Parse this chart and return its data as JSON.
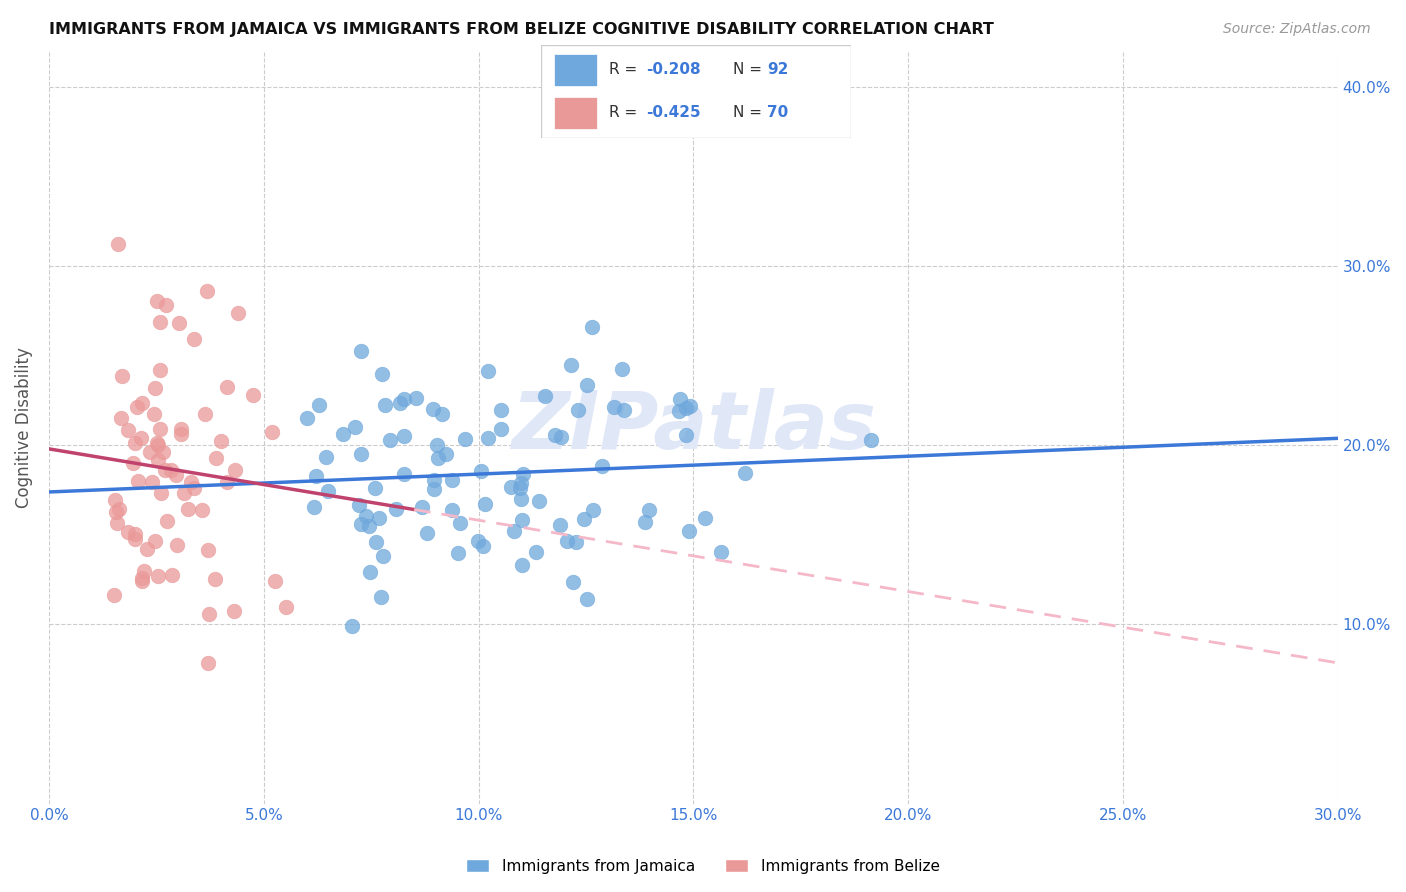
{
  "title": "IMMIGRANTS FROM JAMAICA VS IMMIGRANTS FROM BELIZE COGNITIVE DISABILITY CORRELATION CHART",
  "source": "Source: ZipAtlas.com",
  "ylabel": "Cognitive Disability",
  "xlim": [
    0.0,
    0.3
  ],
  "ylim": [
    0.0,
    0.42
  ],
  "xticks": [
    0.0,
    0.05,
    0.1,
    0.15,
    0.2,
    0.25,
    0.3
  ],
  "yticks": [
    0.1,
    0.2,
    0.3,
    0.4
  ],
  "ytick_labels": [
    "10.0%",
    "20.0%",
    "30.0%",
    "40.0%"
  ],
  "xtick_labels": [
    "0.0%",
    "5.0%",
    "10.0%",
    "15.0%",
    "20.0%",
    "25.0%",
    "30.0%"
  ],
  "jamaica_color": "#6fa8dc",
  "belize_color": "#ea9999",
  "jamaica_line_color": "#3c78d8",
  "belize_line_solid_color": "#c0436e",
  "belize_line_dash_color": "#f4b8c8",
  "jamaica_r": -0.208,
  "jamaica_n": 92,
  "belize_r": -0.425,
  "belize_n": 70,
  "watermark": "ZIPatlas",
  "legend_jamaica_label": "Immigrants from Jamaica",
  "legend_belize_label": "Immigrants from Belize"
}
